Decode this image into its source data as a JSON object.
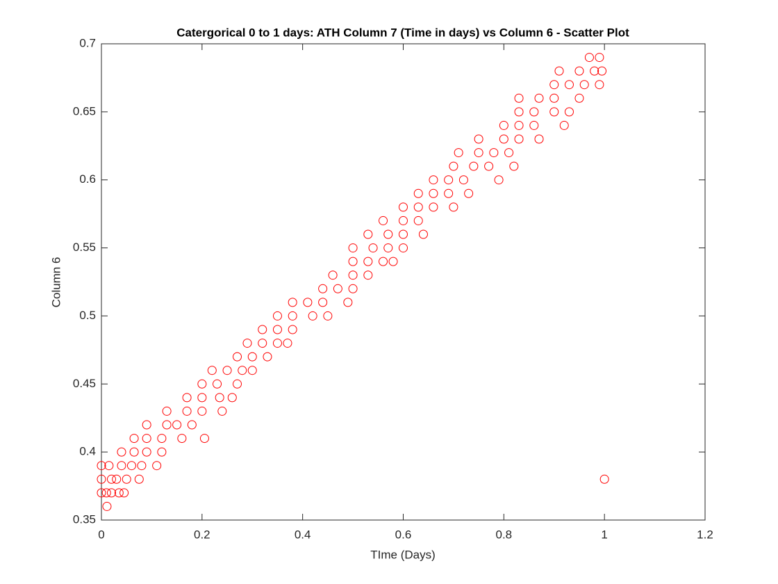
{
  "chart_data": {
    "type": "scatter",
    "title": "Catergorical 0 to 1 days: ATH Column 7 (Time in days) vs Column 6 - Scatter Plot",
    "xlabel": "TIme (Days)",
    "ylabel": "Column 6",
    "xlim": [
      0,
      1.2
    ],
    "ylim": [
      0.35,
      0.7
    ],
    "xticks": [
      0,
      0.2,
      0.4,
      0.6,
      0.8,
      1,
      1.2
    ],
    "yticks": [
      0.35,
      0.4,
      0.45,
      0.5,
      0.55,
      0.6,
      0.65,
      0.7
    ],
    "grid": false,
    "marker_color": "#ff0000",
    "x": [
      0.011,
      0.0,
      0.01,
      0.02,
      0.035,
      0.045,
      0.0,
      0.02,
      0.03,
      0.05,
      0.075,
      0.0,
      0.015,
      0.04,
      0.06,
      0.08,
      0.11,
      0.04,
      0.065,
      0.09,
      0.12,
      0.065,
      0.09,
      0.12,
      0.16,
      0.205,
      0.09,
      0.13,
      0.15,
      0.18,
      0.13,
      0.17,
      0.2,
      0.24,
      0.17,
      0.2,
      0.235,
      0.26,
      0.2,
      0.23,
      0.27,
      0.22,
      0.25,
      0.28,
      0.3,
      0.27,
      0.3,
      0.33,
      0.29,
      0.32,
      0.35,
      0.37,
      0.32,
      0.35,
      0.38,
      0.35,
      0.38,
      0.42,
      0.45,
      0.38,
      0.41,
      0.44,
      0.49,
      0.44,
      0.47,
      0.5,
      0.46,
      0.5,
      0.53,
      0.5,
      0.53,
      0.56,
      0.58,
      0.5,
      0.54,
      0.57,
      0.6,
      0.53,
      0.57,
      0.6,
      0.64,
      0.56,
      0.6,
      0.63,
      0.6,
      0.63,
      0.66,
      0.7,
      0.63,
      0.66,
      0.69,
      0.73,
      0.66,
      0.69,
      0.72,
      0.79,
      0.7,
      0.74,
      0.77,
      0.82,
      0.71,
      0.75,
      0.78,
      0.81,
      0.75,
      0.8,
      0.83,
      0.87,
      0.8,
      0.83,
      0.86,
      0.92,
      0.83,
      0.86,
      0.9,
      0.93,
      0.83,
      0.87,
      0.9,
      0.95,
      0.9,
      0.93,
      0.96,
      0.99,
      0.91,
      0.95,
      0.98,
      0.995,
      0.97,
      0.99,
      1.0
    ],
    "series": [
      {
        "name": "Column 6",
        "color": "#ff0000",
        "values": [
          0.36,
          0.37,
          0.37,
          0.37,
          0.37,
          0.37,
          0.38,
          0.38,
          0.38,
          0.38,
          0.38,
          0.39,
          0.39,
          0.39,
          0.39,
          0.39,
          0.39,
          0.4,
          0.4,
          0.4,
          0.4,
          0.41,
          0.41,
          0.41,
          0.41,
          0.41,
          0.42,
          0.42,
          0.42,
          0.42,
          0.43,
          0.43,
          0.43,
          0.43,
          0.44,
          0.44,
          0.44,
          0.44,
          0.45,
          0.45,
          0.45,
          0.46,
          0.46,
          0.46,
          0.46,
          0.47,
          0.47,
          0.47,
          0.48,
          0.48,
          0.48,
          0.48,
          0.49,
          0.49,
          0.49,
          0.5,
          0.5,
          0.5,
          0.5,
          0.51,
          0.51,
          0.51,
          0.51,
          0.52,
          0.52,
          0.52,
          0.53,
          0.53,
          0.53,
          0.54,
          0.54,
          0.54,
          0.54,
          0.55,
          0.55,
          0.55,
          0.55,
          0.56,
          0.56,
          0.56,
          0.56,
          0.57,
          0.57,
          0.57,
          0.58,
          0.58,
          0.58,
          0.58,
          0.59,
          0.59,
          0.59,
          0.59,
          0.6,
          0.6,
          0.6,
          0.6,
          0.61,
          0.61,
          0.61,
          0.61,
          0.62,
          0.62,
          0.62,
          0.62,
          0.63,
          0.63,
          0.63,
          0.63,
          0.64,
          0.64,
          0.64,
          0.64,
          0.65,
          0.65,
          0.65,
          0.65,
          0.66,
          0.66,
          0.66,
          0.66,
          0.67,
          0.67,
          0.67,
          0.67,
          0.68,
          0.68,
          0.68,
          0.68,
          0.69,
          0.69,
          0.38
        ]
      }
    ]
  }
}
